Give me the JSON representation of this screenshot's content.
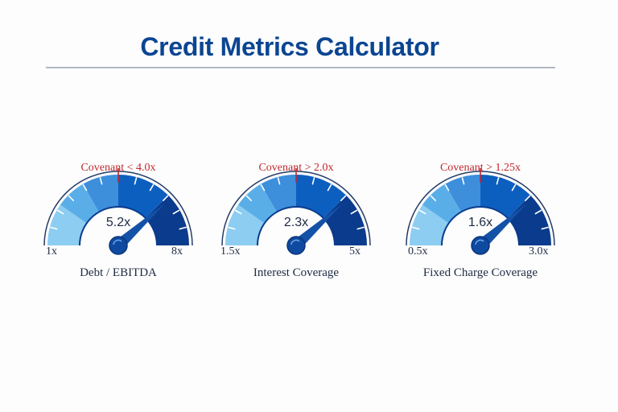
{
  "header": {
    "title": "Credit Metrics Calculator"
  },
  "colors": {
    "title": "#0b4592",
    "segments": [
      "#8ccdf1",
      "#5aaee8",
      "#3d8edb",
      "#0d5fbf",
      "#0a3b8c"
    ],
    "covenant": "#c0272d",
    "needle": "#1452a8",
    "text": "#1d2a44"
  },
  "gauges": [
    {
      "name": "Debt / EBITDA",
      "value_label": "5.2x",
      "min_label": "1x",
      "max_label": "8x",
      "covenant_label": "Covenant < 4.0x"
    },
    {
      "name": "Interest Coverage",
      "value_label": "2.3x",
      "min_label": "1.5x",
      "max_label": "5x",
      "covenant_label": "Covenant > 2.0x"
    },
    {
      "name": "Fixed Charge Coverage",
      "value_label": "1.6x",
      "min_label": "0.5x",
      "max_label": "3.0x",
      "covenant_label": "Covenant > 1.25x"
    }
  ],
  "chart_data": [
    {
      "type": "gauge",
      "title": "Debt / EBITDA",
      "min": 1,
      "max": 8,
      "value": 5.2,
      "covenant": 4.0,
      "covenant_rule": "<",
      "unit": "x"
    },
    {
      "type": "gauge",
      "title": "Interest Coverage",
      "min": 1.5,
      "max": 5,
      "value": 2.3,
      "covenant": 2.0,
      "covenant_rule": ">",
      "unit": "x"
    },
    {
      "type": "gauge",
      "title": "Fixed Charge Coverage",
      "min": 0.5,
      "max": 3.0,
      "value": 1.6,
      "covenant": 1.25,
      "covenant_rule": ">",
      "unit": "x"
    }
  ]
}
